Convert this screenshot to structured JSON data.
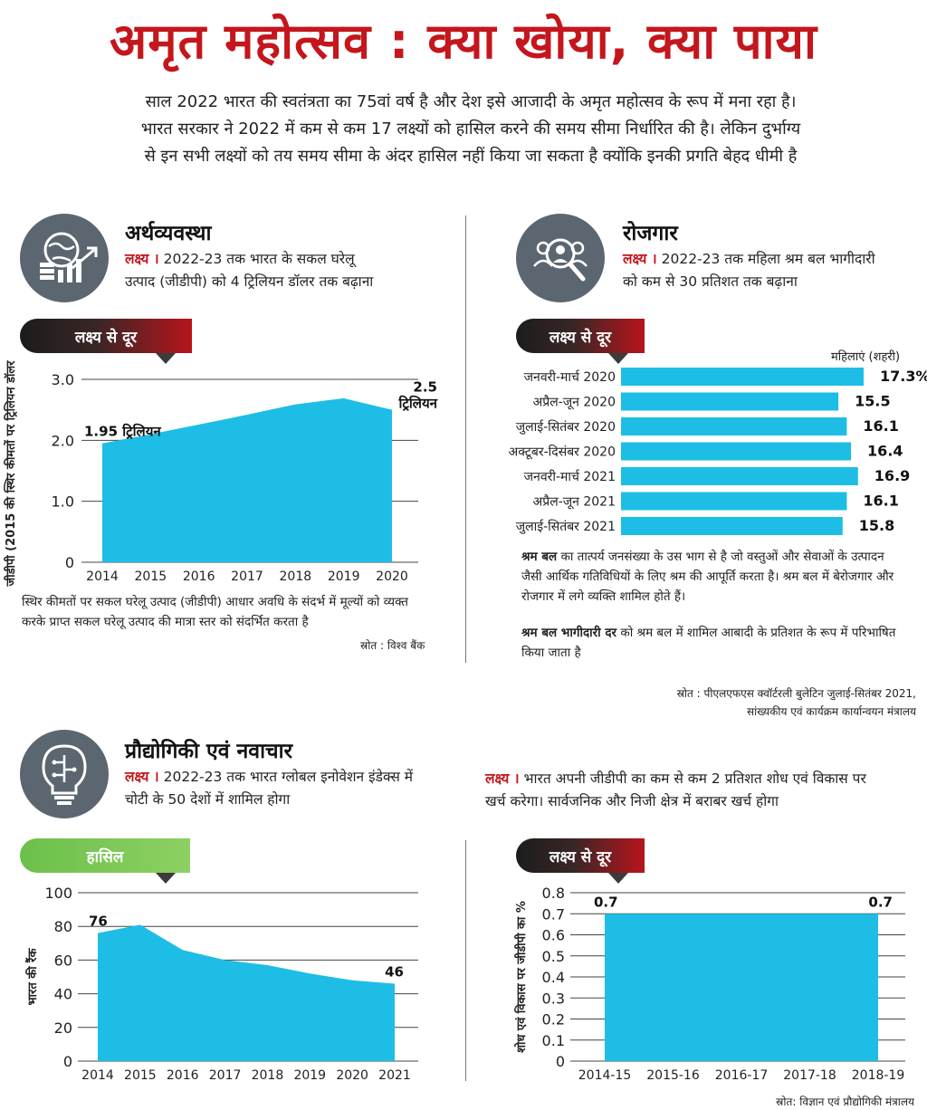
{
  "header": {
    "title": "अमृत महोत्सव : क्या खोया, क्या पाया",
    "intro": [
      "साल 2022 भारत की स्वतंत्रता का 75वां वर्ष है और देश इसे आजादी के अमृत महोत्सव के रूप में मना रहा है।",
      "भारत सरकार ने 2022 में कम से कम 17 लक्ष्यों को हासिल करने की समय सीमा निर्धारित की है। लेकिन दुर्भाग्य",
      "से इन सभी लक्ष्यों को तय समय सीमा के अंदर हासिल नहीं किया जा सकता है क्योंकि इनकी प्रगति बेहद धीमी है"
    ]
  },
  "colors": {
    "title_red": "#c4161c",
    "chart_blue": "#1ebde6",
    "icon_grey": "#5b6670",
    "tag_green": "#6cc04a"
  },
  "economy": {
    "icon": "globe-coins-growth-icon",
    "title": "अर्थव्यवस्था",
    "goal_label": "लक्ष्य ।",
    "goal_text": "2022-23 तक भारत के सकल घरेलू",
    "goal_text2": "उत्पाद (जीडीपी) को 4 ट्रिलियन डॉलर तक बढ़ाना",
    "tag": "लक्ष्य से दूर",
    "note": "स्थिर कीमतों पर सकल घरेलू उत्पाद (जीडीपी) आधार अवधि के संदर्भ में मूल्यों को व्यक्त",
    "note2": "करके प्राप्त सकल घरेलू उत्पाद की मात्रा स्तर को संदर्भित करता है",
    "source": "स्रोत : विश्व बैंक"
  },
  "employment": {
    "icon": "people-search-icon",
    "title": "रोजगार",
    "goal_label": "लक्ष्य ।",
    "goal_text": "2022-23 तक महिला श्रम बल भागीदारी",
    "goal_text2": "को कम से 30 प्रतिशत तक बढ़ाना",
    "tag": "लक्ष्य से दूर",
    "legend": "महिलाएं (शहरी)",
    "note1_bold": "श्रम बल",
    "note1": " का तात्पर्य जनसंख्या के उस भाग से है जो वस्तुओं और सेवाओं के उत्पादन",
    "note1b": "जैसी आर्थिक गतिविधियों के लिए श्रम की आपूर्ति करता है। श्रम बल में बेरोजगार और",
    "note1c": "रोजगार में लगे व्यक्ति शामिल होते हैं।",
    "note2_bold": "श्रम बल भागीदारी दर",
    "note2": " को श्रम बल में शामिल आबादी के प्रतिशत के रूप में परिभाषित",
    "note2b": "किया जाता है",
    "source1": "स्रोत : पीएलएफएस क्वॉर्टरली बुलेटिन जुलाई-सितंबर 2021,",
    "source2": "सांख्यकीय एवं कार्यक्रम कार्यान्वयन मंत्रालय"
  },
  "tech": {
    "icon": "bulb-circuit-icon",
    "title": "प्रौद्योगिकी एवं नवाचार",
    "goal_label": "लक्ष्य ।",
    "goal_text": "2022-23 तक भारत ग्लोबल इनोवेशन इंडेक्स में",
    "goal_text2": "चोटी के 50 देशों में शामिल होगा",
    "tag": "हासिल"
  },
  "rnd": {
    "goal_label": "लक्ष्य ।",
    "goal_text": "भारत अपनी जीडीपी का कम से कम 2 प्रतिशत शोध एवं विकास पर",
    "goal_text2": "खर्च करेगा। सार्वजनिक और निजी क्षेत्र में बराबर खर्च होगा",
    "tag": "लक्ष्य से दूर",
    "source": "स्रोत: विज्ञान एवं प्रौद्योगिकी मंत्रालय"
  },
  "chart_data": [
    {
      "type": "area",
      "x": [
        "2014",
        "2015",
        "2016",
        "2017",
        "2018",
        "2019",
        "2020"
      ],
      "values": [
        1.95,
        2.1,
        2.26,
        2.42,
        2.59,
        2.69,
        2.5
      ],
      "ylabel": "जीडीपी (2015 की स्थिर कीमतों पर ट्रिलियन डॉलर)",
      "yticks": [
        "0",
        "1.0",
        "2.0",
        "3.0"
      ],
      "ylim": [
        0,
        3.0
      ],
      "labels": [
        {
          "index": 0,
          "text": "1.95 ट्रिलियन"
        },
        {
          "index": 6,
          "text": "2.5",
          "text2": "ट्रिलियन"
        }
      ],
      "grid": true
    },
    {
      "type": "bar",
      "orientation": "horizontal",
      "categories": [
        "जनवरी-मार्च 2020",
        "अप्रैल-जून 2020",
        "जुलाई-सितंबर 2020",
        "अक्टूबर-दिसंबर 2020",
        "जनवरी-मार्च 2021",
        "अप्रैल-जून 2021",
        "जुलाई-सितंबर 2021"
      ],
      "values": [
        17.3,
        15.5,
        16.1,
        16.4,
        16.9,
        16.1,
        15.8
      ],
      "value_labels": [
        "17.3%",
        "15.5",
        "16.1",
        "16.4",
        "16.9",
        "16.1",
        "15.8"
      ],
      "series": [
        {
          "name": "महिलाएं (शहरी)"
        }
      ]
    },
    {
      "type": "area",
      "x": [
        "2014",
        "2015",
        "2016",
        "2017",
        "2018",
        "2019",
        "2020",
        "2021"
      ],
      "values": [
        76,
        81,
        66,
        60,
        57,
        52,
        48,
        46
      ],
      "ylabel": "भारत की रैंक",
      "yticks": [
        "0",
        "20",
        "40",
        "60",
        "80",
        "100"
      ],
      "ylim": [
        0,
        100
      ],
      "labels": [
        {
          "index": 0,
          "text": "76"
        },
        {
          "index": 7,
          "text": "46"
        }
      ],
      "grid": true
    },
    {
      "type": "area",
      "x": [
        "2014-15",
        "2015-16",
        "2016-17",
        "2017-18",
        "2018-19"
      ],
      "values": [
        0.7,
        0.7,
        0.7,
        0.7,
        0.7
      ],
      "ylabel": "शोध एवं विकास पर जीडीपी का %",
      "yticks": [
        "0",
        "0.1",
        "0.2",
        "0.3",
        "0.4",
        "0.5",
        "0.6",
        "0.7",
        "0.8"
      ],
      "ylim": [
        0,
        0.8
      ],
      "labels": [
        {
          "index": 0,
          "text": "0.7"
        },
        {
          "index": 4,
          "text": "0.7"
        }
      ],
      "grid": true
    }
  ]
}
